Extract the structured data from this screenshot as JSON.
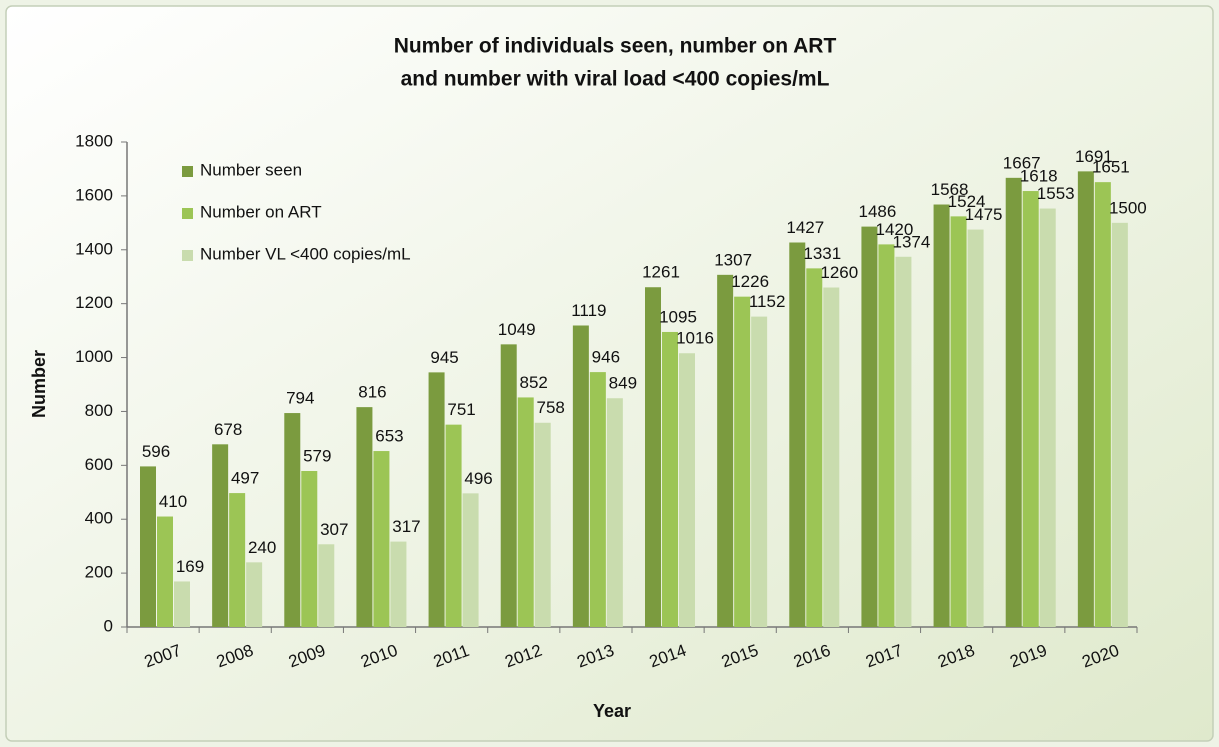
{
  "chart_data": {
    "type": "bar",
    "title": [
      "Number of individuals seen, number on ART",
      "and number with viral load <400 copies/mL"
    ],
    "x_label": "Year",
    "y_label": "Number",
    "categories": [
      "2007",
      "2008",
      "2009",
      "2010",
      "2011",
      "2012",
      "2013",
      "2014",
      "2015",
      "2016",
      "2017",
      "2018",
      "2019",
      "2020"
    ],
    "series": [
      {
        "name": "Number seen",
        "color": "#7b9b3f",
        "values": [
          596,
          678,
          794,
          816,
          945,
          1049,
          1119,
          1261,
          1307,
          1427,
          1486,
          1568,
          1667,
          1691
        ]
      },
      {
        "name": "Number on ART",
        "color": "#9cc555",
        "values": [
          410,
          497,
          579,
          653,
          751,
          852,
          946,
          1095,
          1226,
          1331,
          1420,
          1524,
          1618,
          1651
        ]
      },
      {
        "name": "Number VL <400 copies/mL",
        "color": "#c9dcae",
        "values": [
          169,
          240,
          307,
          317,
          496,
          758,
          849,
          1016,
          1152,
          1260,
          1374,
          1475,
          1553,
          1500
        ]
      }
    ],
    "ylim": [
      0,
      1800
    ],
    "yticks": [
      0,
      200,
      400,
      600,
      800,
      1000,
      1200,
      1400,
      1600,
      1800
    ],
    "legend": "top-left"
  }
}
